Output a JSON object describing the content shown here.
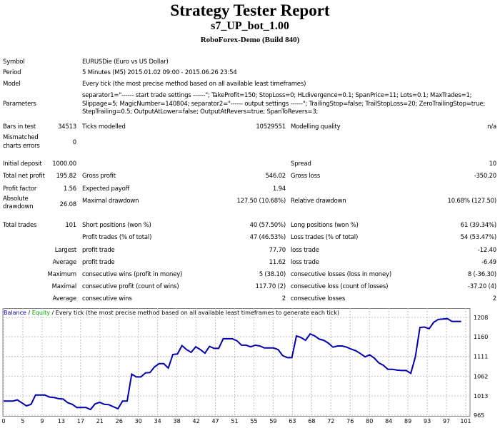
{
  "header": {
    "title": "Strategy Tester Report",
    "expert": "s7_UP_bot_1.00",
    "server": "RoboForex-Demo (Build 840)"
  },
  "info": {
    "symbol_label": "Symbol",
    "symbol": "EURUSDie (Euro vs US Dollar)",
    "period_label": "Period",
    "period": "5 Minutes (M5) 2015.01.02 09:00 - 2015.06.26 23:54",
    "model_label": "Model",
    "model": "Every tick (the most precise method based on all available least timeframes)",
    "parameters_label": "Parameters",
    "parameters": [
      "separator1=\"------ start trade settings ------\"; TakeProfit=150; StopLoss=0; HLdivergence=0.1; SpanPrice=11; Lots=0.1; MaxTrades=1;",
      "Slippage=5; MagicNumber=140804; separator2=\"------ output settings ------\"; TrailingStop=false; TrailStopLoss=20; ZeroTrailingStop=true;",
      "StepTrailing=0.5; OutputAtLower=false; OutputAtRevers=true; SpanToRevers=3;"
    ],
    "bars_label": "Bars in test",
    "bars": "34513",
    "ticks_label": "Ticks modelled",
    "ticks": "10529551",
    "quality_label": "Modelling quality",
    "quality": "n/a",
    "mismatch_label1": "Mismatched",
    "mismatch_label2": "charts errors",
    "mismatch": "0"
  },
  "stats": [
    [
      "Initial deposit",
      "1000.00",
      "",
      "",
      "Spread",
      "10"
    ],
    [
      "Total net profit",
      "195.82",
      "Gross profit",
      "546.02",
      "Gross loss",
      "-350.20"
    ],
    [
      "Profit factor",
      "1.56",
      "Expected payoff",
      "1.94",
      "",
      ""
    ],
    [
      "",
      "26.08",
      "Maximal drawdown",
      "127.50 (10.68%)",
      "Relative drawdown",
      "10.68% (127.50)"
    ],
    [
      "Total trades",
      "101",
      "Short positions (won %)",
      "40 (57.50%)",
      "Long positions (won %)",
      "61 (39.34%)"
    ],
    [
      "",
      "",
      "Profit trades (% of total)",
      "47 (46.53%)",
      "Loss trades (% of total)",
      "54 (53.47%)"
    ],
    [
      "",
      "Largest",
      "profit trade",
      "77.70",
      "loss trade",
      "-12.40"
    ],
    [
      "",
      "Average",
      "profit trade",
      "11.62",
      "loss trade",
      "-6.49"
    ],
    [
      "",
      "Maximum",
      "consecutive wins (profit in money)",
      "5 (38.10)",
      "consecutive losses (loss in money)",
      "8 (-36.30)"
    ],
    [
      "",
      "Maximal",
      "consecutive profit (count of wins)",
      "117.70 (2)",
      "consecutive loss (count of losses)",
      "-37.20 (4)"
    ],
    [
      "",
      "Average",
      "consecutive wins",
      "2",
      "consecutive losses",
      "2"
    ]
  ],
  "absolute_drawdown_label": [
    "Absolute",
    "drawdown"
  ],
  "chart_legend": {
    "balance": "Balance",
    "sep1": " / ",
    "equity": "Equity",
    "rest": " / Every tick (the most precise method based on all available least timeframes to generate each tick)"
  },
  "colors": {
    "balance": "#0000b0",
    "equity": "#00a000",
    "grid": "#c0c0c0"
  },
  "chart_data": {
    "type": "line",
    "x_ticks": [
      0,
      5,
      9,
      13,
      17,
      21,
      26,
      30,
      34,
      38,
      42,
      47,
      51,
      55,
      59,
      63,
      68,
      72,
      76,
      80,
      84,
      89,
      93,
      97,
      101
    ],
    "y_ticks": [
      965,
      1013,
      1062,
      1111,
      1160,
      1208
    ],
    "ylim": [
      965,
      1215
    ],
    "xlim": [
      0,
      101
    ],
    "grid": true,
    "series": [
      {
        "name": "Balance",
        "x": [
          0,
          2,
          3,
          5,
          6,
          7,
          9,
          10,
          11,
          12,
          13,
          14,
          15,
          16,
          18,
          19,
          20,
          21,
          22,
          23,
          25,
          26,
          27,
          28,
          29,
          30,
          31,
          32,
          33,
          34,
          35,
          36,
          37,
          38,
          39,
          40,
          41,
          42,
          43,
          44,
          45,
          46,
          47,
          48,
          50,
          51,
          52,
          53,
          54,
          55,
          56,
          57,
          59,
          60,
          61,
          62,
          63,
          64,
          65,
          66,
          67,
          68,
          69,
          70,
          71,
          72,
          73,
          74,
          75,
          76,
          77,
          78,
          79,
          80,
          81,
          82,
          83,
          84,
          85,
          86,
          87,
          88,
          89,
          90,
          91,
          92,
          93,
          94,
          95,
          96,
          97,
          98,
          100
        ],
        "values": [
          1000,
          1000,
          1003,
          988,
          992,
          1015,
          1015,
          1010,
          1009,
          1006,
          1005,
          996,
          992,
          984,
          984,
          979,
          993,
          997,
          992,
          991,
          981,
          1000,
          1000,
          1067,
          1060,
          1060,
          1070,
          1071,
          1085,
          1093,
          1093,
          1082,
          1116,
          1117,
          1138,
          1128,
          1121,
          1135,
          1128,
          1119,
          1136,
          1131,
          1131,
          1155,
          1155,
          1150,
          1139,
          1139,
          1135,
          1139,
          1137,
          1132,
          1132,
          1128,
          1113,
          1108,
          1108,
          1162,
          1158,
          1151,
          1167,
          1162,
          1154,
          1151,
          1144,
          1134,
          1137,
          1137,
          1134,
          1129,
          1125,
          1118,
          1110,
          1115,
          1107,
          1095,
          1089,
          1079,
          1079,
          1077,
          1076,
          1076,
          1069,
          1110,
          1183,
          1184,
          1180,
          1196,
          1203,
          1204,
          1205,
          1198,
          1198
        ]
      }
    ]
  }
}
